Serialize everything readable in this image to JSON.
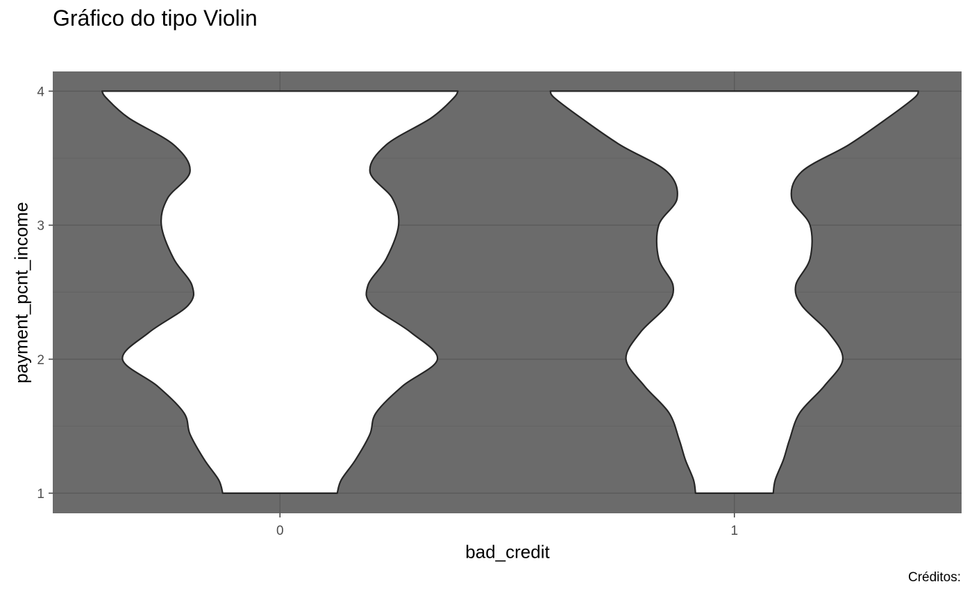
{
  "chart_data": {
    "type": "violin",
    "title": "Gráfico do tipo Violin",
    "xlabel": "bad_credit",
    "ylabel": "payment_pcnt_income",
    "caption": "Créditos:",
    "categories": [
      "0",
      "1"
    ],
    "y_ticks": [
      1,
      2,
      3,
      4
    ],
    "ylim": [
      0.85,
      4.15
    ],
    "grid": true,
    "colors": {
      "panel_background": "#6b6b6b",
      "violin_fill": "#ffffff",
      "violin_outline": "#262626",
      "grid_major": "#5a5a5a",
      "grid_minor": "#636363"
    },
    "violins": [
      {
        "category": "0",
        "density_profile": [
          {
            "y": 1.0,
            "w": 0.28
          },
          {
            "y": 1.1,
            "w": 0.3
          },
          {
            "y": 1.25,
            "w": 0.37
          },
          {
            "y": 1.44,
            "w": 0.44
          },
          {
            "y": 1.6,
            "w": 0.47
          },
          {
            "y": 1.8,
            "w": 0.6
          },
          {
            "y": 2.0,
            "w": 0.77
          },
          {
            "y": 2.2,
            "w": 0.64
          },
          {
            "y": 2.4,
            "w": 0.45
          },
          {
            "y": 2.55,
            "w": 0.43
          },
          {
            "y": 2.75,
            "w": 0.52
          },
          {
            "y": 3.0,
            "w": 0.58
          },
          {
            "y": 3.2,
            "w": 0.55
          },
          {
            "y": 3.4,
            "w": 0.44
          },
          {
            "y": 3.6,
            "w": 0.52
          },
          {
            "y": 3.8,
            "w": 0.74
          },
          {
            "y": 3.95,
            "w": 0.85
          },
          {
            "y": 4.0,
            "w": 0.87
          }
        ]
      },
      {
        "category": "1",
        "density_profile": [
          {
            "y": 1.0,
            "w": 0.19
          },
          {
            "y": 1.1,
            "w": 0.2
          },
          {
            "y": 1.25,
            "w": 0.24
          },
          {
            "y": 1.4,
            "w": 0.27
          },
          {
            "y": 1.6,
            "w": 0.32
          },
          {
            "y": 1.8,
            "w": 0.44
          },
          {
            "y": 2.0,
            "w": 0.53
          },
          {
            "y": 2.2,
            "w": 0.46
          },
          {
            "y": 2.4,
            "w": 0.33
          },
          {
            "y": 2.55,
            "w": 0.3
          },
          {
            "y": 2.75,
            "w": 0.37
          },
          {
            "y": 3.0,
            "w": 0.37
          },
          {
            "y": 3.2,
            "w": 0.28
          },
          {
            "y": 3.4,
            "w": 0.33
          },
          {
            "y": 3.6,
            "w": 0.56
          },
          {
            "y": 3.8,
            "w": 0.75
          },
          {
            "y": 3.95,
            "w": 0.88
          },
          {
            "y": 4.0,
            "w": 0.9
          }
        ]
      }
    ]
  }
}
